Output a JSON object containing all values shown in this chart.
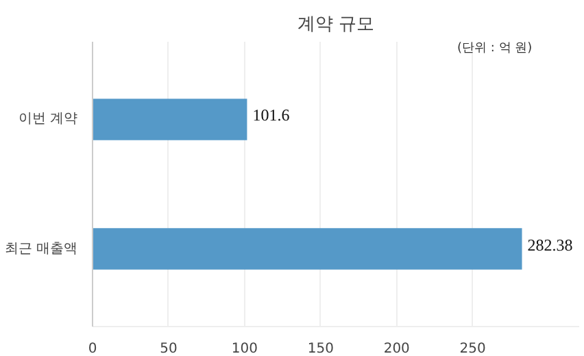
{
  "chart_data": {
    "type": "bar",
    "title": "계약 규모",
    "orientation": "horizontal",
    "categories": [
      "이번 계약",
      "최근 매출액"
    ],
    "values": [
      101.6,
      282.38
    ],
    "color": "#5599c8",
    "xlim": [
      0,
      320
    ],
    "xticks": [
      0,
      50,
      100,
      150,
      200,
      250
    ],
    "grid": "x",
    "data_labels": true,
    "annotations": [
      "(단위 : 억 원)"
    ]
  }
}
